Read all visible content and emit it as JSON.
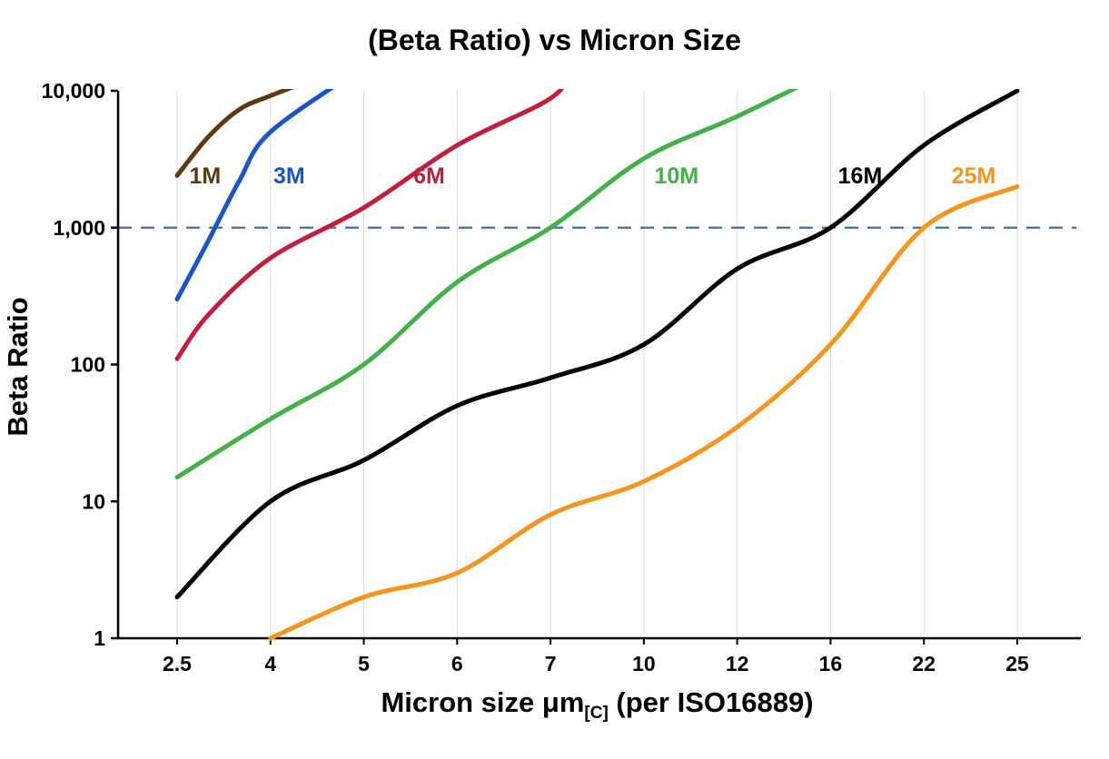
{
  "title": "(Beta Ratio) vs Micron Size",
  "y_axis_title": "Beta Ratio",
  "x_axis_title": {
    "main": "Micron size μm",
    "sub": "[C]",
    "rest": " (per ISO16889)"
  },
  "chart_data": {
    "type": "line",
    "y_scale": "log",
    "ylim": [
      1,
      10000
    ],
    "y_ticks": [
      1,
      10,
      100,
      1000,
      10000
    ],
    "y_tick_labels": [
      "1",
      "10",
      "100",
      "1,000",
      "10,000"
    ],
    "x_categories": [
      2.5,
      4,
      5,
      6,
      7,
      10,
      12,
      16,
      22,
      25
    ],
    "x_tick_labels": [
      "2.5",
      "4",
      "5",
      "6",
      "7",
      "10",
      "12",
      "16",
      "22",
      "25"
    ],
    "grid": "vertical-light",
    "grid_color": "#dcdcdc",
    "axis_color": "#000000",
    "reference_line": {
      "y": 1000,
      "style": "dashed",
      "color": "#3e6db5"
    },
    "legend_position": "inline-labels",
    "series": [
      {
        "name": "1M",
        "color": "#5e3a12",
        "label_pos": {
          "x": 2.95,
          "y": 2100
        },
        "points": [
          [
            2.5,
            2400
          ],
          [
            3,
            4600
          ],
          [
            3.5,
            7300
          ],
          [
            4,
            9200
          ],
          [
            4.7,
            14000
          ]
        ]
      },
      {
        "name": "3M",
        "color": "#1b56c4",
        "label_pos": {
          "x": 4.2,
          "y": 2100
        },
        "points": [
          [
            2.5,
            300
          ],
          [
            3,
            800
          ],
          [
            3.5,
            2200
          ],
          [
            4,
            5000
          ],
          [
            5,
            15000
          ]
        ]
      },
      {
        "name": "6M",
        "color": "#c01f3f",
        "label_pos": {
          "x": 5.7,
          "y": 2100
        },
        "points": [
          [
            2.5,
            110
          ],
          [
            3,
            230
          ],
          [
            4,
            600
          ],
          [
            5,
            1400
          ],
          [
            6,
            4000
          ],
          [
            7,
            8800
          ],
          [
            7.6,
            14000
          ]
        ]
      },
      {
        "name": "10M",
        "color": "#43b049",
        "label_pos": {
          "x": 10.7,
          "y": 2100
        },
        "points": [
          [
            2.5,
            15
          ],
          [
            4,
            40
          ],
          [
            5,
            100
          ],
          [
            6,
            400
          ],
          [
            7,
            1000
          ],
          [
            10,
            3200
          ],
          [
            12,
            6500
          ],
          [
            16,
            14000
          ]
        ]
      },
      {
        "name": "16M",
        "color": "#000000",
        "label_pos": {
          "x": 17.9,
          "y": 2100
        },
        "points": [
          [
            2.5,
            2
          ],
          [
            4,
            10
          ],
          [
            5,
            20
          ],
          [
            6,
            50
          ],
          [
            7,
            80
          ],
          [
            10,
            140
          ],
          [
            12,
            500
          ],
          [
            16,
            1000
          ],
          [
            22,
            4000
          ],
          [
            25,
            10000
          ]
        ]
      },
      {
        "name": "25M",
        "color": "#f7941d",
        "label_pos": {
          "x": 23.6,
          "y": 2100
        },
        "points": [
          [
            4,
            1
          ],
          [
            5,
            2
          ],
          [
            6,
            3
          ],
          [
            7,
            8
          ],
          [
            10,
            14
          ],
          [
            12,
            35
          ],
          [
            16,
            140
          ],
          [
            22,
            1000
          ],
          [
            25,
            2000
          ]
        ]
      }
    ]
  }
}
